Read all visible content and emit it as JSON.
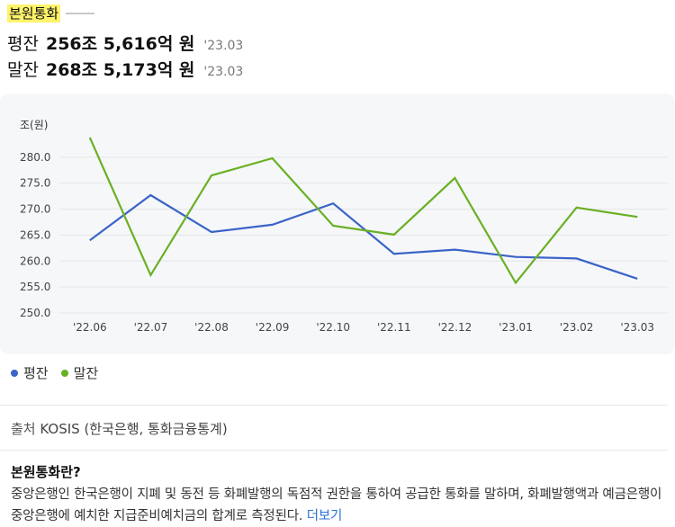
{
  "header": {
    "title": "본원통화"
  },
  "stats": [
    {
      "label": "평잔",
      "value": "256조 5,616억 원",
      "date": "'23.03"
    },
    {
      "label": "말잔",
      "value": "268조 5,173억 원",
      "date": "'23.03"
    }
  ],
  "chart_data": {
    "type": "line",
    "ylabel": "조(원)",
    "ylim": [
      250,
      285
    ],
    "yticks": [
      "250.0",
      "255.0",
      "260.0",
      "265.0",
      "270.0",
      "275.0",
      "280.0"
    ],
    "categories": [
      "'22.06",
      "'22.07",
      "'22.08",
      "'22.09",
      "'22.10",
      "'22.11",
      "'22.12",
      "'23.01",
      "'23.02",
      "'23.03"
    ],
    "series": [
      {
        "name": "평잔",
        "color": "#3a64c8",
        "values": [
          264.0,
          272.7,
          265.6,
          267.0,
          271.1,
          261.4,
          262.2,
          260.8,
          260.5,
          256.6
        ]
      },
      {
        "name": "말잔",
        "color": "#6ab023",
        "values": [
          283.8,
          257.3,
          276.5,
          279.8,
          266.8,
          265.1,
          276.0,
          255.8,
          270.3,
          268.5
        ]
      }
    ],
    "grid": true,
    "legend": "bottom-left"
  },
  "source": {
    "label": "출처",
    "text": "KOSIS (한국은행, 통화금융통계)"
  },
  "description": {
    "title": "본원통화란?",
    "body": "중앙은행인 한국은행이 지폐 및 동전 등 화폐발행의 독점적 권한을 통하여 공급한 통화를 말하며, 화폐발행액과 예금은행이 중앙은행에 예치한 지급준비예치금의 합계로 측정된다.",
    "more_label": "더보기"
  }
}
